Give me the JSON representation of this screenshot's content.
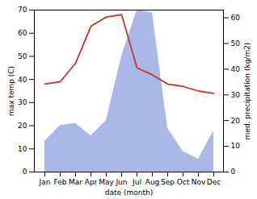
{
  "chart_data": {
    "type": "line",
    "categories": [
      "Jan",
      "Feb",
      "Mar",
      "Apr",
      "May",
      "Jun",
      "Jul",
      "Aug",
      "Sep",
      "Oct",
      "Nov",
      "Dec"
    ],
    "xlabel": "date (month)",
    "ylabel": "max temp (C)",
    "y2label": "med. precipitation (kg/m2)",
    "ylim": [
      0,
      70
    ],
    "yticks": [
      0,
      10,
      20,
      30,
      40,
      50,
      60,
      70
    ],
    "y2lim": [
      0,
      63
    ],
    "y2ticks": [
      0,
      10,
      20,
      30,
      40,
      50,
      60
    ],
    "grid": false,
    "series": [
      {
        "type": "area",
        "axis": "y2",
        "color": "#aab8e8",
        "values": [
          12,
          18,
          19,
          14,
          20,
          45,
          63,
          62,
          17,
          8,
          5,
          16
        ]
      },
      {
        "type": "line",
        "color": "#c0392b",
        "values": [
          38,
          39,
          47,
          63,
          67,
          68,
          45,
          42,
          38,
          37,
          35,
          34
        ]
      }
    ]
  }
}
